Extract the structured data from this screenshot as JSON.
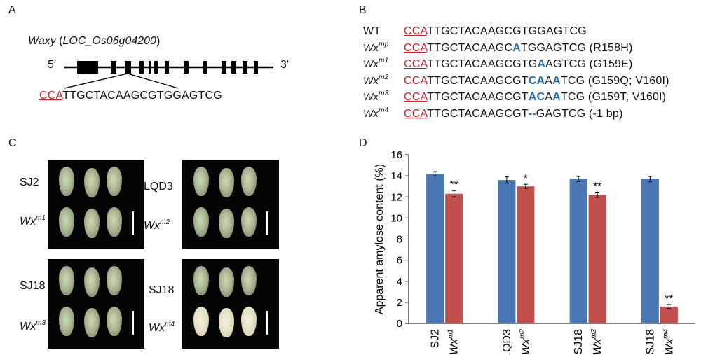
{
  "panels": {
    "a": "A",
    "b": "B",
    "c": "C",
    "d": "D"
  },
  "panelA": {
    "gene_name": "Waxy",
    "gene_locus": "LOC_Os06g04200",
    "five_prime": "5′",
    "three_prime": "3′",
    "pam": "CCA",
    "target": "TTGCTACAAGCGTGGAGTCG"
  },
  "panelB": {
    "rows": [
      {
        "label": "WT",
        "sup": "",
        "pam": "CCA",
        "seq_parts": [
          [
            "TTGCTACAAGCGTGGAGTCG",
            false
          ]
        ],
        "note": ""
      },
      {
        "label": "Wx",
        "sup": "mp",
        "pam": "CCA",
        "seq_parts": [
          [
            "TTGCTACAAGC",
            false
          ],
          [
            "A",
            true
          ],
          [
            "TGGAGTCG",
            false
          ]
        ],
        "note": "(R158H)"
      },
      {
        "label": "Wx",
        "sup": "m1",
        "pam": "CCA",
        "seq_parts": [
          [
            "TTGCTACAAGCGTG",
            false
          ],
          [
            "A",
            true
          ],
          [
            "AGTCG",
            false
          ]
        ],
        "note": "(G159E)"
      },
      {
        "label": "Wx",
        "sup": "m2",
        "pam": "CCA",
        "seq_parts": [
          [
            "TTGCTACAAGCGT",
            false
          ],
          [
            "CA",
            true
          ],
          [
            "A",
            false
          ],
          [
            "A",
            true
          ],
          [
            "TCG",
            false
          ]
        ],
        "note": "(G159Q; V160I)"
      },
      {
        "label": "Wx",
        "sup": "m3",
        "pam": "CCA",
        "seq_parts": [
          [
            "TTGCTACAAGCGT",
            false
          ],
          [
            "AC",
            true
          ],
          [
            "A",
            false
          ],
          [
            "A",
            true
          ],
          [
            "TCG",
            false
          ]
        ],
        "note": "(G159T; V160I)"
      },
      {
        "label": "Wx",
        "sup": "m4",
        "pam": "CCA",
        "seq_parts": [
          [
            "TTGCTACAAGCGT",
            false
          ],
          [
            "--",
            true
          ],
          [
            "GAGTCG",
            false
          ]
        ],
        "note": "(-1 bp)"
      }
    ]
  },
  "panelC": {
    "photos": [
      {
        "top": "SJ2",
        "bottom_base": "Wx",
        "bottom_sup": "m1"
      },
      {
        "top": "LQD3",
        "bottom_base": "Wx",
        "bottom_sup": "m2"
      },
      {
        "top": "SJ18",
        "bottom_base": "Wx",
        "bottom_sup": "m3"
      },
      {
        "top": "SJ18",
        "bottom_base": "Wx",
        "bottom_sup": "m4"
      }
    ]
  },
  "chart_data": {
    "type": "bar",
    "title": "",
    "ylabel": "Apparent amylose content (%)",
    "xlabel": "",
    "ylim": [
      0,
      16
    ],
    "yticks": [
      0,
      2,
      4,
      6,
      8,
      10,
      12,
      14,
      16
    ],
    "groups": [
      {
        "wt": "SJ2",
        "mut_base": "Wx",
        "mut_sup": "m1",
        "wt_value": 14.2,
        "wt_err": 0.2,
        "mut_value": 12.3,
        "mut_err": 0.3,
        "sig": "**"
      },
      {
        "wt": "LQD3",
        "mut_base": "Wx",
        "mut_sup": "m2",
        "wt_value": 13.6,
        "wt_err": 0.3,
        "mut_value": 13.0,
        "mut_err": 0.2,
        "sig": "*"
      },
      {
        "wt": "SJ18",
        "mut_base": "Wx",
        "mut_sup": "m3",
        "wt_value": 13.7,
        "wt_err": 0.25,
        "mut_value": 12.2,
        "mut_err": 0.25,
        "sig": "**"
      },
      {
        "wt": "SJ18",
        "mut_base": "Wx",
        "mut_sup": "m4",
        "wt_value": 13.7,
        "wt_err": 0.25,
        "mut_value": 1.6,
        "mut_err": 0.2,
        "sig": "**"
      }
    ],
    "colors": {
      "wt": "#4a78b5",
      "mut": "#c0504d"
    }
  }
}
